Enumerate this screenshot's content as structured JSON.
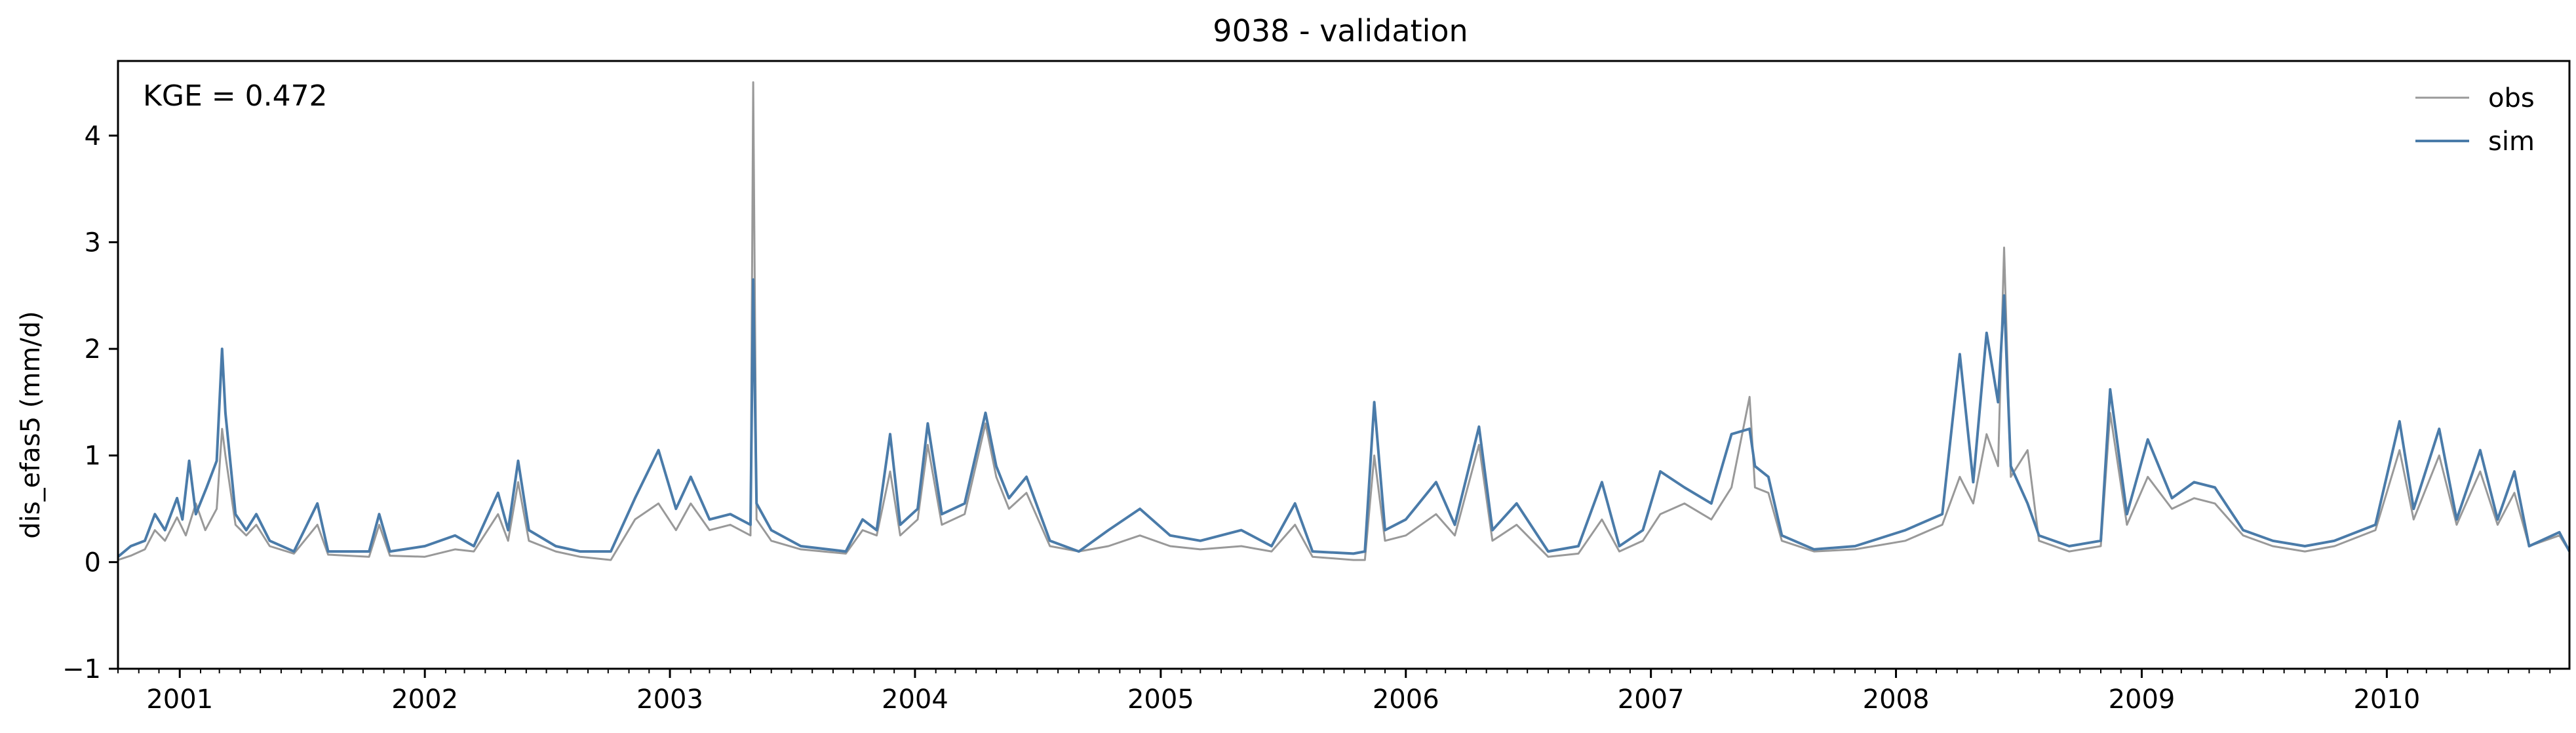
{
  "chart_data": {
    "type": "line",
    "title": "9038 - validation",
    "xlabel": "",
    "ylabel": "dis_efas5 (mm/d)",
    "xlim": [
      "2000-10-01",
      "2010-09-30"
    ],
    "ylim": [
      -1,
      4.7
    ],
    "yticks": [
      -1,
      0,
      1,
      2,
      3,
      4
    ],
    "xticks": [
      "2001",
      "2002",
      "2003",
      "2004",
      "2005",
      "2006",
      "2007",
      "2008",
      "2009",
      "2010"
    ],
    "grid": false,
    "legend_position": "top-right",
    "annotation": "KGE = 0.472",
    "series": [
      {
        "name": "obs",
        "color": "#999999",
        "points": [
          [
            "2000-10-01",
            0.02
          ],
          [
            "2000-10-20",
            0.06
          ],
          [
            "2000-11-10",
            0.12
          ],
          [
            "2000-11-25",
            0.3
          ],
          [
            "2000-12-10",
            0.2
          ],
          [
            "2000-12-28",
            0.42
          ],
          [
            "2001-01-10",
            0.25
          ],
          [
            "2001-01-25",
            0.55
          ],
          [
            "2001-02-08",
            0.3
          ],
          [
            "2001-02-25",
            0.5
          ],
          [
            "2001-03-05",
            1.25
          ],
          [
            "2001-03-10",
            1.0
          ],
          [
            "2001-03-25",
            0.35
          ],
          [
            "2001-04-10",
            0.25
          ],
          [
            "2001-04-25",
            0.35
          ],
          [
            "2001-05-15",
            0.15
          ],
          [
            "2001-06-20",
            0.08
          ],
          [
            "2001-07-25",
            0.35
          ],
          [
            "2001-08-10",
            0.07
          ],
          [
            "2001-10-10",
            0.05
          ],
          [
            "2001-10-25",
            0.35
          ],
          [
            "2001-11-10",
            0.06
          ],
          [
            "2002-01-01",
            0.05
          ],
          [
            "2002-02-15",
            0.12
          ],
          [
            "2002-03-15",
            0.1
          ],
          [
            "2002-04-20",
            0.45
          ],
          [
            "2002-05-05",
            0.2
          ],
          [
            "2002-05-20",
            0.75
          ],
          [
            "2002-06-05",
            0.2
          ],
          [
            "2002-07-15",
            0.1
          ],
          [
            "2002-08-20",
            0.05
          ],
          [
            "2002-10-05",
            0.02
          ],
          [
            "2002-11-10",
            0.4
          ],
          [
            "2002-12-15",
            0.55
          ],
          [
            "2003-01-10",
            0.3
          ],
          [
            "2003-02-01",
            0.55
          ],
          [
            "2003-03-01",
            0.3
          ],
          [
            "2003-04-01",
            0.35
          ],
          [
            "2003-05-01",
            0.25
          ],
          [
            "2003-05-05",
            4.5
          ],
          [
            "2003-05-10",
            0.4
          ],
          [
            "2003-06-01",
            0.2
          ],
          [
            "2003-07-15",
            0.12
          ],
          [
            "2003-09-20",
            0.08
          ],
          [
            "2003-10-15",
            0.3
          ],
          [
            "2003-11-05",
            0.25
          ],
          [
            "2003-11-25",
            0.85
          ],
          [
            "2003-12-10",
            0.25
          ],
          [
            "2004-01-05",
            0.4
          ],
          [
            "2004-01-20",
            1.1
          ],
          [
            "2004-02-10",
            0.35
          ],
          [
            "2004-03-15",
            0.45
          ],
          [
            "2004-04-15",
            1.3
          ],
          [
            "2004-05-01",
            0.8
          ],
          [
            "2004-05-20",
            0.5
          ],
          [
            "2004-06-15",
            0.65
          ],
          [
            "2004-07-20",
            0.15
          ],
          [
            "2004-09-01",
            0.1
          ],
          [
            "2004-10-15",
            0.15
          ],
          [
            "2004-12-01",
            0.25
          ],
          [
            "2005-01-15",
            0.15
          ],
          [
            "2005-03-01",
            0.12
          ],
          [
            "2005-05-01",
            0.15
          ],
          [
            "2005-06-15",
            0.1
          ],
          [
            "2005-07-20",
            0.35
          ],
          [
            "2005-08-15",
            0.05
          ],
          [
            "2005-10-15",
            0.02
          ],
          [
            "2005-11-01",
            0.02
          ],
          [
            "2005-11-15",
            1.0
          ],
          [
            "2005-12-01",
            0.2
          ],
          [
            "2006-01-01",
            0.25
          ],
          [
            "2006-02-15",
            0.45
          ],
          [
            "2006-03-15",
            0.25
          ],
          [
            "2006-04-20",
            1.1
          ],
          [
            "2006-05-10",
            0.2
          ],
          [
            "2006-06-15",
            0.35
          ],
          [
            "2006-08-01",
            0.05
          ],
          [
            "2006-09-15",
            0.08
          ],
          [
            "2006-10-20",
            0.4
          ],
          [
            "2006-11-15",
            0.1
          ],
          [
            "2006-12-20",
            0.2
          ],
          [
            "2007-01-15",
            0.45
          ],
          [
            "2007-02-20",
            0.55
          ],
          [
            "2007-04-01",
            0.4
          ],
          [
            "2007-05-01",
            0.7
          ],
          [
            "2007-05-28",
            1.55
          ],
          [
            "2007-06-05",
            0.7
          ],
          [
            "2007-06-25",
            0.65
          ],
          [
            "2007-07-15",
            0.2
          ],
          [
            "2007-09-01",
            0.1
          ],
          [
            "2007-11-01",
            0.12
          ],
          [
            "2008-01-15",
            0.2
          ],
          [
            "2008-03-10",
            0.35
          ],
          [
            "2008-04-05",
            0.8
          ],
          [
            "2008-04-25",
            0.55
          ],
          [
            "2008-05-15",
            1.2
          ],
          [
            "2008-06-01",
            0.9
          ],
          [
            "2008-06-10",
            2.95
          ],
          [
            "2008-06-20",
            0.8
          ],
          [
            "2008-07-15",
            1.05
          ],
          [
            "2008-08-01",
            0.2
          ],
          [
            "2008-09-15",
            0.1
          ],
          [
            "2008-11-01",
            0.15
          ],
          [
            "2008-11-15",
            1.4
          ],
          [
            "2008-12-10",
            0.35
          ],
          [
            "2009-01-10",
            0.8
          ],
          [
            "2009-02-15",
            0.5
          ],
          [
            "2009-03-20",
            0.6
          ],
          [
            "2009-04-20",
            0.55
          ],
          [
            "2009-06-01",
            0.25
          ],
          [
            "2009-07-15",
            0.15
          ],
          [
            "2009-09-01",
            0.1
          ],
          [
            "2009-10-15",
            0.15
          ],
          [
            "2009-12-15",
            0.3
          ],
          [
            "2010-01-20",
            1.05
          ],
          [
            "2010-02-10",
            0.4
          ],
          [
            "2010-03-20",
            1.0
          ],
          [
            "2010-04-15",
            0.35
          ],
          [
            "2010-05-20",
            0.85
          ],
          [
            "2010-06-15",
            0.35
          ],
          [
            "2010-07-10",
            0.65
          ],
          [
            "2010-08-01",
            0.15
          ],
          [
            "2010-09-15",
            0.25
          ],
          [
            "2010-09-30",
            0.1
          ]
        ]
      },
      {
        "name": "sim",
        "color": "#4a7ba9",
        "points": [
          [
            "2000-10-01",
            0.05
          ],
          [
            "2000-10-20",
            0.15
          ],
          [
            "2000-11-10",
            0.2
          ],
          [
            "2000-11-25",
            0.45
          ],
          [
            "2000-12-10",
            0.3
          ],
          [
            "2000-12-28",
            0.6
          ],
          [
            "2001-01-05",
            0.4
          ],
          [
            "2001-01-15",
            0.95
          ],
          [
            "2001-01-25",
            0.45
          ],
          [
            "2001-02-10",
            0.7
          ],
          [
            "2001-02-25",
            0.95
          ],
          [
            "2001-03-05",
            2.0
          ],
          [
            "2001-03-10",
            1.4
          ],
          [
            "2001-03-25",
            0.45
          ],
          [
            "2001-04-10",
            0.3
          ],
          [
            "2001-04-25",
            0.45
          ],
          [
            "2001-05-15",
            0.2
          ],
          [
            "2001-06-20",
            0.1
          ],
          [
            "2001-07-25",
            0.55
          ],
          [
            "2001-08-10",
            0.1
          ],
          [
            "2001-10-10",
            0.1
          ],
          [
            "2001-10-25",
            0.45
          ],
          [
            "2001-11-10",
            0.1
          ],
          [
            "2002-01-01",
            0.15
          ],
          [
            "2002-02-15",
            0.25
          ],
          [
            "2002-03-15",
            0.15
          ],
          [
            "2002-04-20",
            0.65
          ],
          [
            "2002-05-05",
            0.3
          ],
          [
            "2002-05-20",
            0.95
          ],
          [
            "2002-06-05",
            0.3
          ],
          [
            "2002-07-15",
            0.15
          ],
          [
            "2002-08-20",
            0.1
          ],
          [
            "2002-10-05",
            0.1
          ],
          [
            "2002-11-10",
            0.6
          ],
          [
            "2002-12-15",
            1.05
          ],
          [
            "2003-01-10",
            0.5
          ],
          [
            "2003-02-01",
            0.8
          ],
          [
            "2003-03-01",
            0.4
          ],
          [
            "2003-04-01",
            0.45
          ],
          [
            "2003-05-01",
            0.35
          ],
          [
            "2003-05-05",
            2.65
          ],
          [
            "2003-05-10",
            0.55
          ],
          [
            "2003-06-01",
            0.3
          ],
          [
            "2003-07-15",
            0.15
          ],
          [
            "2003-09-20",
            0.1
          ],
          [
            "2003-10-15",
            0.4
          ],
          [
            "2003-11-05",
            0.3
          ],
          [
            "2003-11-25",
            1.2
          ],
          [
            "2003-12-10",
            0.35
          ],
          [
            "2004-01-05",
            0.5
          ],
          [
            "2004-01-20",
            1.3
          ],
          [
            "2004-02-10",
            0.45
          ],
          [
            "2004-03-15",
            0.55
          ],
          [
            "2004-04-15",
            1.4
          ],
          [
            "2004-05-01",
            0.9
          ],
          [
            "2004-05-20",
            0.6
          ],
          [
            "2004-06-15",
            0.8
          ],
          [
            "2004-07-20",
            0.2
          ],
          [
            "2004-09-01",
            0.1
          ],
          [
            "2004-10-15",
            0.3
          ],
          [
            "2004-12-01",
            0.5
          ],
          [
            "2005-01-15",
            0.25
          ],
          [
            "2005-03-01",
            0.2
          ],
          [
            "2005-05-01",
            0.3
          ],
          [
            "2005-06-15",
            0.15
          ],
          [
            "2005-07-20",
            0.55
          ],
          [
            "2005-08-15",
            0.1
          ],
          [
            "2005-10-15",
            0.08
          ],
          [
            "2005-11-01",
            0.1
          ],
          [
            "2005-11-15",
            1.5
          ],
          [
            "2005-12-01",
            0.3
          ],
          [
            "2006-01-01",
            0.4
          ],
          [
            "2006-02-15",
            0.75
          ],
          [
            "2006-03-15",
            0.35
          ],
          [
            "2006-04-20",
            1.27
          ],
          [
            "2006-05-10",
            0.3
          ],
          [
            "2006-06-15",
            0.55
          ],
          [
            "2006-08-01",
            0.1
          ],
          [
            "2006-09-15",
            0.15
          ],
          [
            "2006-10-20",
            0.75
          ],
          [
            "2006-11-15",
            0.15
          ],
          [
            "2006-12-20",
            0.3
          ],
          [
            "2007-01-15",
            0.85
          ],
          [
            "2007-02-20",
            0.7
          ],
          [
            "2007-04-01",
            0.55
          ],
          [
            "2007-05-01",
            1.2
          ],
          [
            "2007-05-28",
            1.25
          ],
          [
            "2007-06-05",
            0.9
          ],
          [
            "2007-06-25",
            0.8
          ],
          [
            "2007-07-15",
            0.25
          ],
          [
            "2007-09-01",
            0.12
          ],
          [
            "2007-11-01",
            0.15
          ],
          [
            "2008-01-15",
            0.3
          ],
          [
            "2008-03-10",
            0.45
          ],
          [
            "2008-04-05",
            1.95
          ],
          [
            "2008-04-25",
            0.75
          ],
          [
            "2008-05-15",
            2.15
          ],
          [
            "2008-06-01",
            1.5
          ],
          [
            "2008-06-10",
            2.5
          ],
          [
            "2008-06-20",
            0.9
          ],
          [
            "2008-07-15",
            0.55
          ],
          [
            "2008-08-01",
            0.25
          ],
          [
            "2008-09-15",
            0.15
          ],
          [
            "2008-11-01",
            0.2
          ],
          [
            "2008-11-15",
            1.62
          ],
          [
            "2008-12-10",
            0.45
          ],
          [
            "2009-01-10",
            1.15
          ],
          [
            "2009-02-15",
            0.6
          ],
          [
            "2009-03-20",
            0.75
          ],
          [
            "2009-04-20",
            0.7
          ],
          [
            "2009-06-01",
            0.3
          ],
          [
            "2009-07-15",
            0.2
          ],
          [
            "2009-09-01",
            0.15
          ],
          [
            "2009-10-15",
            0.2
          ],
          [
            "2009-12-15",
            0.35
          ],
          [
            "2010-01-20",
            1.32
          ],
          [
            "2010-02-10",
            0.5
          ],
          [
            "2010-03-20",
            1.25
          ],
          [
            "2010-04-15",
            0.4
          ],
          [
            "2010-05-20",
            1.05
          ],
          [
            "2010-06-15",
            0.4
          ],
          [
            "2010-07-10",
            0.85
          ],
          [
            "2010-08-01",
            0.15
          ],
          [
            "2010-09-15",
            0.28
          ],
          [
            "2010-09-30",
            0.1
          ]
        ]
      }
    ]
  }
}
